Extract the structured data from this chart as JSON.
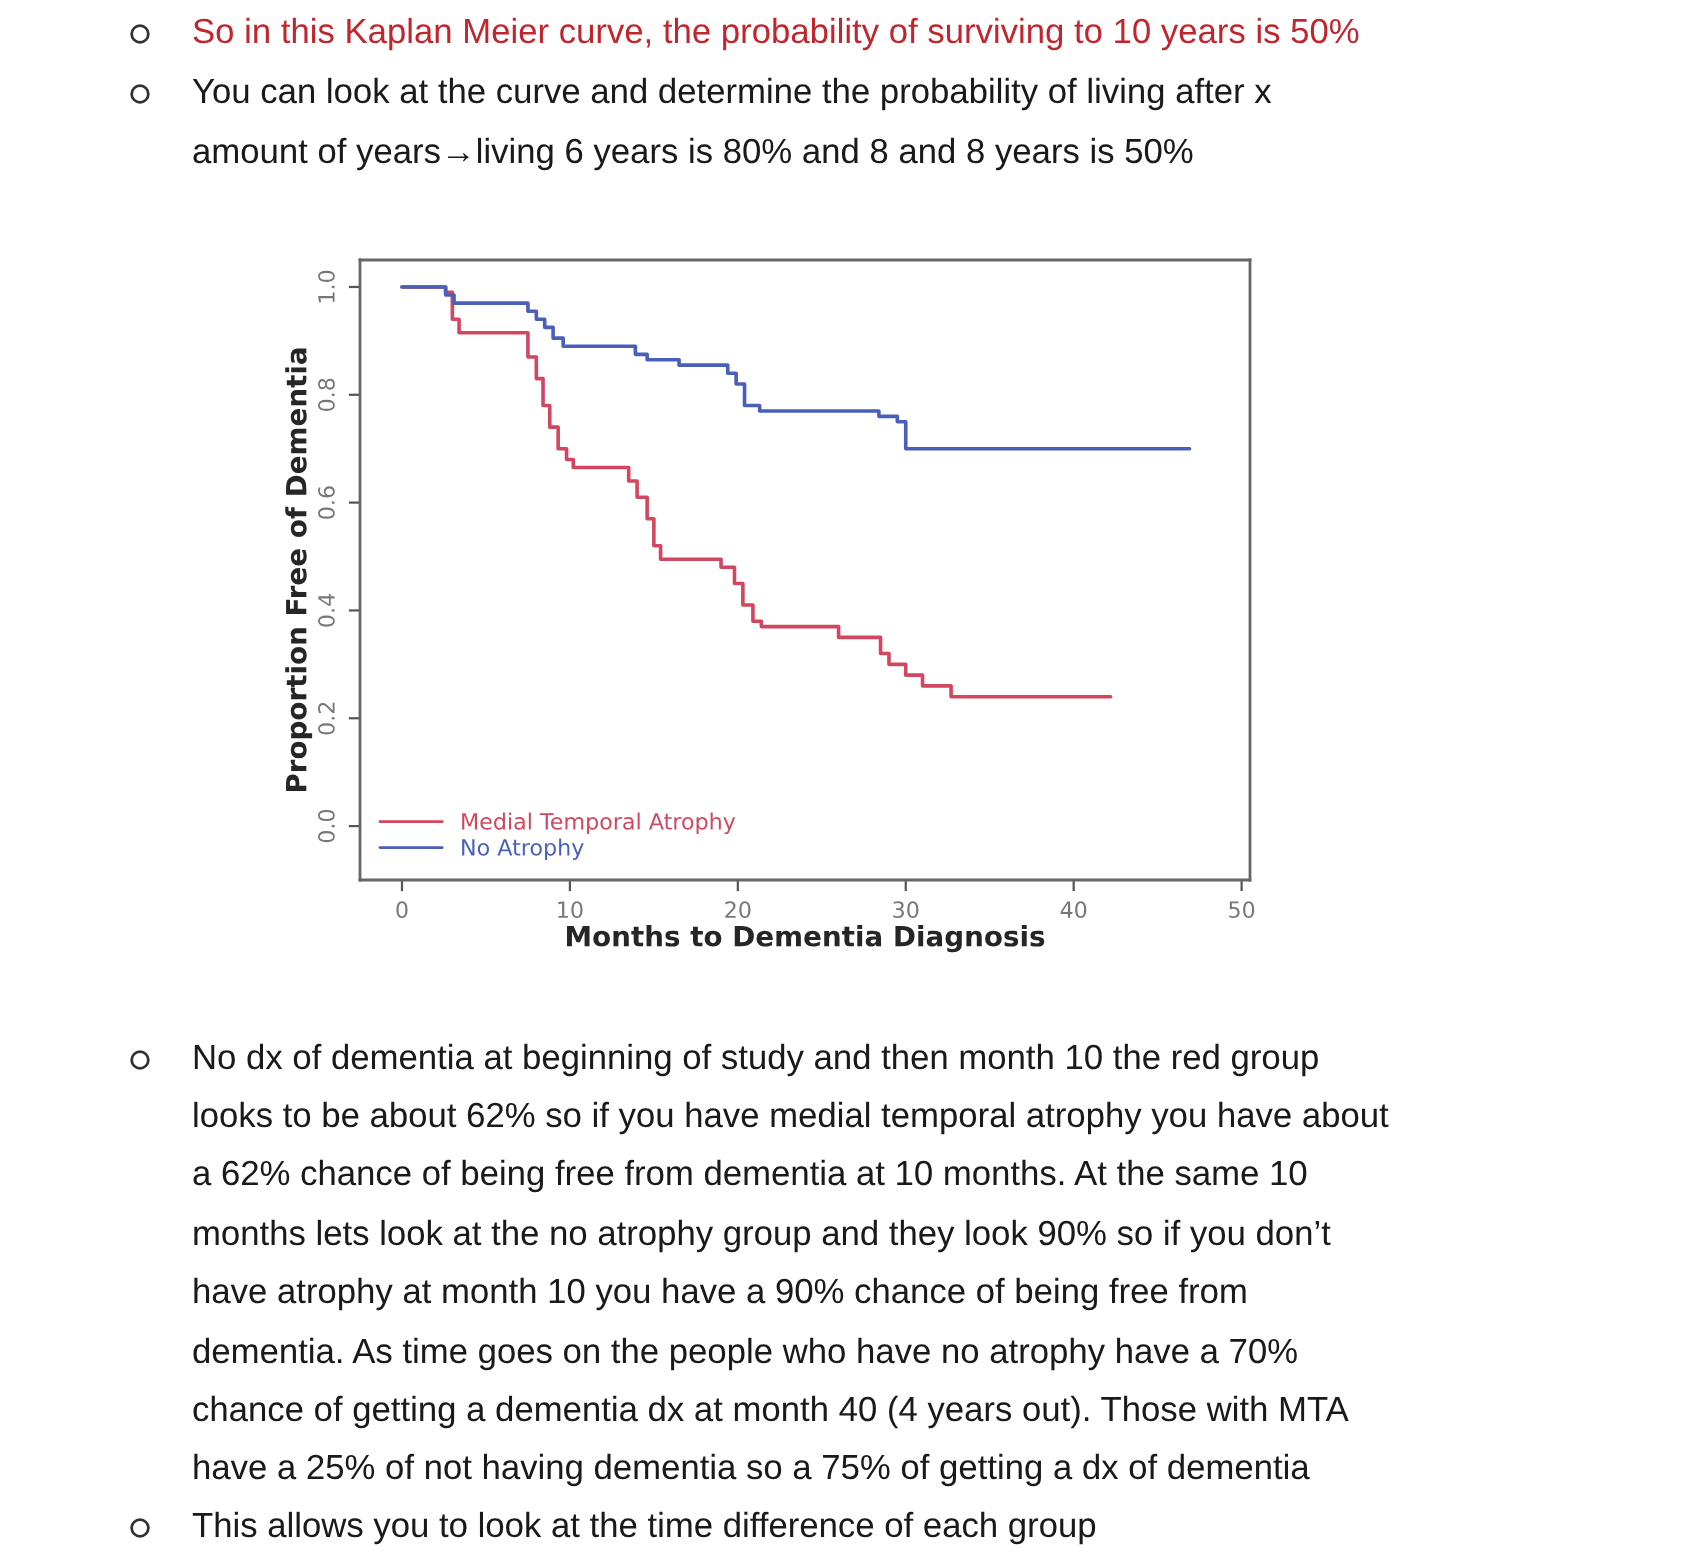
{
  "chart_data": {
    "type": "step",
    "xlabel": "Months to Dementia Diagnosis",
    "ylabel": "Proportion Free of Dementia",
    "xlim": [
      -2.5,
      50.5
    ],
    "ylim": [
      -0.1,
      1.05
    ],
    "xticks": [
      0,
      10,
      20,
      30,
      40,
      50
    ],
    "yticks": [
      {
        "value": 0,
        "label": "0.0"
      },
      {
        "value": 0.2,
        "label": "0.2"
      },
      {
        "value": 0.4,
        "label": "0.4"
      },
      {
        "value": 0.6,
        "label": "0.6"
      },
      {
        "value": 0.8,
        "label": "0.8"
      },
      {
        "value": 1.0,
        "label": "1.0"
      }
    ],
    "grid": false,
    "legend": "bottom left",
    "marker": "none",
    "line_style": "solid",
    "series": [
      {
        "name": "Medial Temporal Atrophy",
        "color": "#d0475f",
        "x": [
          0,
          2.6,
          3.0,
          3.4,
          7.5,
          8.0,
          8.4,
          8.8,
          9.3,
          9.8,
          10.2,
          13.5,
          14.0,
          14.6,
          15.0,
          15.4,
          19.0,
          19.8,
          20.3,
          20.9,
          21.4,
          26.0,
          28.5,
          29.0,
          30.0,
          31.0,
          32.7,
          42.2
        ],
        "values": [
          1.0,
          0.99,
          0.94,
          0.915,
          0.87,
          0.83,
          0.78,
          0.74,
          0.7,
          0.68,
          0.665,
          0.64,
          0.61,
          0.57,
          0.52,
          0.495,
          0.48,
          0.45,
          0.41,
          0.38,
          0.37,
          0.35,
          0.32,
          0.3,
          0.28,
          0.26,
          0.24,
          0.24
        ]
      },
      {
        "name": "No Atrophy",
        "color": "#4a5fb8",
        "x": [
          0,
          2.6,
          3.1,
          7.5,
          8.0,
          8.5,
          9.0,
          9.6,
          13.9,
          14.6,
          16.5,
          19.4,
          19.9,
          20.4,
          21.3,
          28.4,
          29.5,
          30.0,
          46.9
        ],
        "values": [
          1.0,
          0.985,
          0.97,
          0.955,
          0.94,
          0.925,
          0.905,
          0.89,
          0.875,
          0.865,
          0.855,
          0.84,
          0.82,
          0.78,
          0.77,
          0.76,
          0.75,
          0.7,
          0.7
        ]
      }
    ],
    "annotations": [
      "So in this Kaplan Meier curve, the probability of surviving to 10 years is 50%",
      "You can look at the curve and determine the probability of living after x",
      "amount of years→living 6 years is 80% and 8 and 8 years is 50%",
      "No dx of dementia at beginning of study and then month 10 the red group",
      "looks to be about 62% so if you have medial temporal atrophy you have about",
      "a 62% chance of being free from dementia at 10 months. At the same 10",
      "months lets look at the no atrophy group and they look 90% so if you don’t",
      "have atrophy at month 10 you have a 90% chance of being free from",
      "dementia. As time goes on the people who have no atrophy have a 70%",
      "chance of getting a dementia dx at month 40 (4 years out). Those with MTA",
      "have a 25% of not having dementia so a 75% of getting a dx of dementia",
      "This allows you to look at the time difference of each group"
    ]
  }
}
